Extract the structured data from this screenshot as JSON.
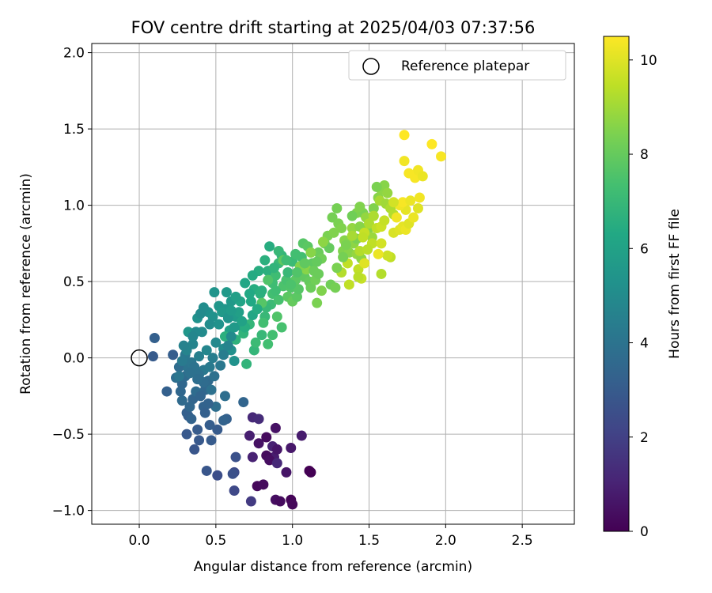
{
  "chart_data": {
    "type": "scatter",
    "title": "FOV centre drift starting at 2025/04/03 07:37:56",
    "xlabel": "Angular distance from reference (arcmin)",
    "ylabel": "Rotation from reference (arcmin)",
    "xlim": [
      -0.31,
      2.84
    ],
    "ylim": [
      -1.09,
      2.06
    ],
    "xticks": [
      "0.0",
      "0.5",
      "1.0",
      "1.5",
      "2.0",
      "2.5"
    ],
    "xtick_values": [
      0.0,
      0.5,
      1.0,
      1.5,
      2.0,
      2.5
    ],
    "yticks": [
      "2.0",
      "1.5",
      "1.0",
      "0.5",
      "0.0",
      "−0.5",
      "−1.0"
    ],
    "ytick_values": [
      2.0,
      1.5,
      1.0,
      0.5,
      0.0,
      -0.5,
      -1.0
    ],
    "grid": true,
    "legend": {
      "position": "top-right",
      "entries": [
        "Reference platepar"
      ]
    },
    "reference": {
      "label": "Reference platepar",
      "x": 0.0,
      "y": 0.0
    },
    "colorbar": {
      "label": "Hours from first FF file",
      "colormap": "viridis",
      "range": [
        0,
        10.5
      ],
      "ticks": [
        "0",
        "2",
        "4",
        "6",
        "8",
        "10"
      ],
      "tick_values": [
        0,
        2,
        4,
        6,
        8,
        10
      ]
    },
    "points": [
      [
        0.77,
        -0.84,
        0.2
      ],
      [
        0.81,
        -0.83,
        0.3
      ],
      [
        0.89,
        -0.93,
        0.4
      ],
      [
        0.92,
        -0.94,
        0.3
      ],
      [
        0.99,
        -0.93,
        0.1
      ],
      [
        1.0,
        -0.96,
        0.2
      ],
      [
        1.11,
        -0.74,
        0.0
      ],
      [
        1.12,
        -0.75,
        0.0
      ],
      [
        0.96,
        -0.75,
        0.6
      ],
      [
        0.88,
        -0.65,
        0.8
      ],
      [
        0.87,
        -0.58,
        1.0
      ],
      [
        0.9,
        -0.6,
        0.6
      ],
      [
        0.83,
        -0.64,
        0.3
      ],
      [
        0.85,
        -0.67,
        0.4
      ],
      [
        0.74,
        -0.65,
        1.0
      ],
      [
        0.78,
        -0.56,
        0.5
      ],
      [
        0.72,
        -0.51,
        0.9
      ],
      [
        0.83,
        -0.52,
        0.3
      ],
      [
        0.89,
        -0.46,
        0.5
      ],
      [
        0.99,
        -0.59,
        0.7
      ],
      [
        1.06,
        -0.51,
        0.8
      ],
      [
        0.74,
        -0.39,
        1.2
      ],
      [
        0.78,
        -0.4,
        1.3
      ],
      [
        0.9,
        -0.69,
        1.2
      ],
      [
        0.73,
        -0.94,
        1.8
      ],
      [
        0.62,
        -0.87,
        2.3
      ],
      [
        0.62,
        -0.75,
        2.4
      ],
      [
        0.61,
        -0.76,
        2.6
      ],
      [
        0.63,
        -0.65,
        2.6
      ],
      [
        0.51,
        -0.77,
        2.5
      ],
      [
        0.44,
        -0.74,
        2.8
      ],
      [
        0.36,
        -0.6,
        2.8
      ],
      [
        0.39,
        -0.54,
        2.9
      ],
      [
        0.47,
        -0.54,
        3.0
      ],
      [
        0.31,
        -0.5,
        2.9
      ],
      [
        0.38,
        -0.47,
        3.0
      ],
      [
        0.32,
        -0.38,
        3.1
      ],
      [
        0.31,
        -0.36,
        3.2
      ],
      [
        0.57,
        -0.4,
        3.2
      ],
      [
        0.55,
        -0.41,
        3.3
      ],
      [
        0.68,
        -0.29,
        3.4
      ],
      [
        0.35,
        -0.27,
        3.4
      ],
      [
        0.42,
        -0.32,
        3.3
      ],
      [
        0.43,
        -0.21,
        3.5
      ],
      [
        0.18,
        -0.22,
        3.2
      ],
      [
        0.28,
        -0.17,
        3.5
      ],
      [
        0.45,
        -0.15,
        3.6
      ],
      [
        0.56,
        -0.25,
        3.8
      ],
      [
        0.5,
        -0.32,
        3.8
      ],
      [
        0.47,
        -0.21,
        3.9
      ],
      [
        0.37,
        -0.22,
        3.7
      ],
      [
        0.3,
        -0.12,
        3.6
      ],
      [
        0.26,
        -0.06,
        3.7
      ],
      [
        0.24,
        -0.13,
        3.8
      ],
      [
        0.32,
        -0.07,
        4.0
      ],
      [
        0.34,
        -0.03,
        4.1
      ],
      [
        0.42,
        -0.08,
        4.2
      ],
      [
        0.46,
        -0.06,
        4.3
      ],
      [
        0.48,
        0.0,
        4.4
      ],
      [
        0.39,
        0.01,
        4.5
      ],
      [
        0.3,
        0.02,
        4.2
      ],
      [
        0.22,
        0.02,
        3.1
      ],
      [
        0.09,
        0.01,
        3.0
      ],
      [
        0.1,
        0.13,
        3.2
      ],
      [
        0.31,
        0.05,
        4.7
      ],
      [
        0.35,
        0.09,
        4.7
      ],
      [
        0.44,
        0.05,
        4.8
      ],
      [
        0.5,
        0.1,
        4.9
      ],
      [
        0.55,
        0.06,
        5.0
      ],
      [
        0.6,
        0.05,
        5.2
      ],
      [
        0.62,
        -0.02,
        5.3
      ],
      [
        0.7,
        -0.04,
        6.8
      ],
      [
        0.41,
        0.17,
        5.0
      ],
      [
        0.32,
        0.17,
        5.5
      ],
      [
        0.38,
        0.26,
        5.3
      ],
      [
        0.45,
        0.3,
        5.2
      ],
      [
        0.42,
        0.33,
        5.1
      ],
      [
        0.49,
        0.43,
        5.4
      ],
      [
        0.52,
        0.34,
        5.5
      ],
      [
        0.56,
        0.32,
        5.5
      ],
      [
        0.57,
        0.43,
        5.6
      ],
      [
        0.6,
        0.37,
        5.6
      ],
      [
        0.63,
        0.27,
        5.7
      ],
      [
        0.66,
        0.21,
        5.8
      ],
      [
        0.59,
        0.18,
        5.9
      ],
      [
        0.57,
        0.14,
        6.2
      ],
      [
        0.56,
        0.14,
        6.6
      ],
      [
        0.63,
        0.12,
        6.7
      ],
      [
        0.68,
        0.16,
        6.8
      ],
      [
        0.72,
        0.22,
        6.9
      ],
      [
        0.65,
        0.3,
        5.9
      ],
      [
        0.73,
        0.37,
        6.3
      ],
      [
        0.75,
        0.45,
        6.5
      ],
      [
        0.82,
        0.27,
        7.0
      ],
      [
        0.79,
        0.42,
        6.6
      ],
      [
        0.86,
        0.35,
        7.1
      ],
      [
        0.75,
        0.05,
        6.9
      ],
      [
        0.76,
        0.1,
        7.1
      ],
      [
        0.8,
        0.15,
        7.0
      ],
      [
        0.84,
        0.09,
        7.3
      ],
      [
        0.87,
        0.15,
        7.3
      ],
      [
        0.93,
        0.2,
        7.4
      ],
      [
        0.9,
        0.27,
        7.6
      ],
      [
        0.83,
        0.33,
        7.0
      ],
      [
        0.87,
        0.42,
        7.3
      ],
      [
        0.91,
        0.38,
        7.4
      ],
      [
        0.78,
        0.57,
        6.5
      ],
      [
        0.82,
        0.64,
        6.6
      ],
      [
        0.84,
        0.57,
        6.6
      ],
      [
        0.87,
        0.49,
        7.2
      ],
      [
        0.89,
        0.54,
        7.2
      ],
      [
        0.91,
        0.62,
        7.0
      ],
      [
        0.85,
        0.73,
        6.5
      ],
      [
        0.93,
        0.67,
        6.9
      ],
      [
        0.94,
        0.47,
        7.5
      ],
      [
        0.96,
        0.51,
        7.4
      ],
      [
        0.99,
        0.46,
        7.6
      ],
      [
        0.97,
        0.4,
        7.8
      ],
      [
        1.0,
        0.37,
        8.0
      ],
      [
        1.03,
        0.4,
        7.8
      ],
      [
        1.04,
        0.45,
        7.7
      ],
      [
        1.02,
        0.51,
        7.8
      ],
      [
        1.05,
        0.56,
        7.7
      ],
      [
        1.0,
        0.63,
        7.1
      ],
      [
        1.02,
        0.68,
        7.3
      ],
      [
        1.06,
        0.66,
        7.3
      ],
      [
        1.07,
        0.75,
        7.7
      ],
      [
        1.1,
        0.73,
        7.8
      ],
      [
        1.08,
        0.53,
        7.9
      ],
      [
        1.11,
        0.5,
        8.0
      ],
      [
        1.12,
        0.46,
        8.1
      ],
      [
        1.15,
        0.51,
        8.2
      ],
      [
        1.17,
        0.55,
        8.1
      ],
      [
        1.13,
        0.62,
        7.9
      ],
      [
        1.17,
        0.69,
        8.1
      ],
      [
        1.19,
        0.65,
        8.2
      ],
      [
        1.21,
        0.75,
        8.3
      ],
      [
        1.24,
        0.72,
        8.0
      ],
      [
        1.16,
        0.36,
        8.4
      ],
      [
        1.25,
        0.48,
        8.2
      ],
      [
        1.28,
        0.46,
        8.3
      ],
      [
        1.23,
        0.8,
        8.4
      ],
      [
        1.27,
        0.82,
        8.5
      ],
      [
        1.26,
        0.92,
        8.3
      ],
      [
        1.3,
        0.88,
        8.4
      ],
      [
        1.32,
        0.85,
        8.5
      ],
      [
        1.34,
        0.77,
        8.6
      ],
      [
        1.29,
        0.98,
        8.3
      ],
      [
        1.33,
        0.7,
        8.5
      ],
      [
        1.37,
        0.69,
        8.6
      ],
      [
        1.4,
        0.75,
        8.7
      ],
      [
        1.42,
        0.78,
        8.4
      ],
      [
        1.42,
        0.68,
        8.8
      ],
      [
        1.45,
        0.65,
        8.7
      ],
      [
        1.39,
        0.85,
        8.8
      ],
      [
        1.44,
        0.86,
        8.6
      ],
      [
        1.42,
        0.95,
        8.5
      ],
      [
        1.46,
        0.95,
        8.4
      ],
      [
        1.48,
        0.92,
        8.8
      ],
      [
        1.5,
        0.85,
        8.6
      ],
      [
        1.52,
        0.79,
        8.9
      ],
      [
        1.53,
        0.98,
        8.5
      ],
      [
        1.56,
        1.05,
        8.6
      ],
      [
        1.58,
        1.1,
        8.7
      ],
      [
        1.6,
        1.13,
        8.6
      ],
      [
        1.62,
        1.08,
        8.8
      ],
      [
        1.55,
        1.12,
        8.4
      ],
      [
        1.57,
        1.03,
        9.1
      ],
      [
        1.61,
        1.01,
        9.0
      ],
      [
        1.64,
        0.98,
        9.2
      ],
      [
        1.66,
        0.94,
        9.3
      ],
      [
        1.5,
        0.88,
        9.2
      ],
      [
        1.55,
        0.85,
        9.5
      ],
      [
        1.58,
        0.86,
        9.7
      ],
      [
        1.47,
        0.82,
        9.6
      ],
      [
        1.46,
        0.79,
        9.5
      ],
      [
        1.52,
        0.75,
        9.5
      ],
      [
        1.44,
        0.7,
        9.3
      ],
      [
        1.49,
        0.71,
        9.4
      ],
      [
        1.36,
        0.62,
        9.5
      ],
      [
        1.43,
        0.58,
        9.5
      ],
      [
        1.45,
        0.52,
        9.6
      ],
      [
        1.43,
        0.53,
        9.4
      ],
      [
        1.32,
        0.56,
        9.3
      ],
      [
        1.37,
        0.48,
        9.5
      ],
      [
        1.58,
        0.55,
        9.3
      ],
      [
        1.64,
        0.66,
        9.5
      ],
      [
        1.62,
        0.67,
        9.7
      ],
      [
        1.58,
        0.75,
        9.8
      ],
      [
        1.66,
        0.82,
        9.9
      ],
      [
        1.7,
        0.84,
        10.0
      ],
      [
        1.72,
        0.86,
        10.1
      ],
      [
        1.74,
        0.84,
        10.2
      ],
      [
        1.76,
        0.88,
        10.0
      ],
      [
        1.79,
        0.92,
        10.2
      ],
      [
        1.82,
        0.98,
        10.0
      ],
      [
        1.74,
        0.97,
        10.1
      ],
      [
        1.7,
        1.0,
        10.3
      ],
      [
        1.72,
        1.02,
        10.4
      ],
      [
        1.77,
        1.03,
        10.2
      ],
      [
        1.83,
        1.05,
        10.3
      ],
      [
        1.8,
        1.18,
        10.4
      ],
      [
        1.82,
        1.23,
        10.3
      ],
      [
        1.85,
        1.19,
        10.2
      ],
      [
        1.76,
        1.21,
        10.4
      ],
      [
        1.73,
        1.29,
        10.3
      ],
      [
        1.91,
        1.4,
        10.5
      ],
      [
        1.97,
        1.32,
        10.4
      ],
      [
        1.73,
        1.46,
        10.5
      ],
      [
        1.56,
        0.68,
        10.2
      ],
      [
        1.47,
        0.62,
        10.0
      ],
      [
        1.68,
        0.92,
        10.3
      ],
      [
        1.66,
        1.02,
        9.8
      ],
      [
        1.6,
        0.9,
        9.6
      ],
      [
        1.53,
        0.93,
        9.2
      ],
      [
        1.39,
        0.8,
        9.1
      ],
      [
        1.2,
        0.76,
        8.7
      ],
      [
        1.12,
        0.69,
        8.6
      ],
      [
        1.09,
        0.58,
        8.6
      ],
      [
        1.05,
        0.6,
        8.5
      ],
      [
        1.19,
        0.44,
        8.5
      ],
      [
        1.29,
        0.59,
        8.4
      ],
      [
        1.33,
        0.66,
        8.3
      ],
      [
        1.35,
        0.74,
        8.4
      ],
      [
        1.39,
        0.93,
        8.2
      ],
      [
        1.44,
        0.99,
        8.5
      ],
      [
        0.94,
        0.64,
        7.9
      ],
      [
        0.89,
        0.44,
        7.2
      ],
      [
        0.97,
        0.56,
        7.0
      ],
      [
        0.99,
        0.48,
        7.5
      ],
      [
        0.84,
        0.51,
        7.6
      ],
      [
        0.8,
        0.36,
        7.7
      ],
      [
        0.81,
        0.23,
        7.3
      ],
      [
        0.69,
        0.2,
        6.5
      ],
      [
        0.66,
        0.37,
        6.1
      ],
      [
        0.63,
        0.4,
        5.9
      ],
      [
        0.54,
        0.3,
        5.6
      ],
      [
        0.48,
        0.27,
        5.3
      ],
      [
        0.46,
        0.22,
        5.1
      ],
      [
        0.4,
        0.29,
        5.0
      ],
      [
        0.37,
        0.17,
        4.9
      ],
      [
        0.35,
        0.14,
        4.8
      ],
      [
        0.29,
        0.08,
        4.6
      ],
      [
        0.28,
        -0.02,
        4.3
      ],
      [
        0.36,
        -0.06,
        4.0
      ],
      [
        0.39,
        -0.11,
        3.9
      ],
      [
        0.42,
        -0.16,
        3.7
      ],
      [
        0.49,
        -0.12,
        3.9
      ],
      [
        0.53,
        -0.05,
        4.2
      ],
      [
        0.55,
        0.02,
        4.4
      ],
      [
        0.58,
        0.08,
        4.7
      ],
      [
        0.6,
        0.14,
        5.0
      ],
      [
        0.52,
        0.22,
        5.3
      ],
      [
        0.58,
        0.26,
        5.4
      ],
      [
        0.62,
        0.2,
        5.6
      ],
      [
        0.6,
        0.31,
        5.7
      ],
      [
        0.67,
        0.24,
        6.0
      ],
      [
        0.74,
        0.28,
        6.2
      ],
      [
        0.77,
        0.32,
        6.4
      ],
      [
        0.8,
        0.44,
        6.6
      ],
      [
        0.74,
        0.54,
        6.4
      ],
      [
        0.72,
        0.42,
        6.3
      ],
      [
        0.69,
        0.49,
        6.2
      ],
      [
        0.88,
        0.59,
        6.8
      ],
      [
        0.91,
        0.7,
        7.0
      ],
      [
        0.96,
        0.64,
        7.2
      ],
      [
        1.03,
        0.56,
        7.6
      ],
      [
        1.08,
        0.62,
        7.9
      ],
      [
        1.14,
        0.57,
        8.1
      ],
      [
        1.16,
        0.63,
        8.0
      ],
      [
        0.51,
        -0.47,
        3.0
      ],
      [
        0.46,
        -0.44,
        3.1
      ],
      [
        0.43,
        -0.36,
        3.2
      ],
      [
        0.45,
        -0.3,
        3.3
      ],
      [
        0.4,
        -0.25,
        3.4
      ],
      [
        0.33,
        -0.32,
        3.5
      ],
      [
        0.34,
        -0.4,
        3.3
      ],
      [
        0.28,
        -0.28,
        3.6
      ],
      [
        0.27,
        -0.22,
        3.5
      ],
      [
        0.38,
        -0.14,
        3.8
      ],
      [
        0.33,
        -0.1,
        3.9
      ],
      [
        0.26,
        -0.12,
        4.1
      ]
    ]
  }
}
